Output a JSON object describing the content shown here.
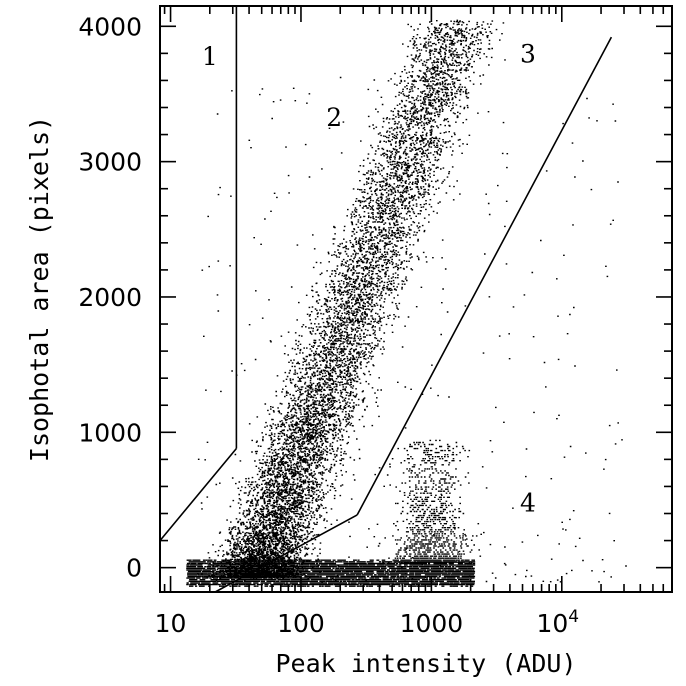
{
  "chart_data": {
    "type": "scatter",
    "xlabel": "Peak intensity (ADU)",
    "ylabel": "Isophotal area (pixels)",
    "x_scale": "log",
    "xlim": [
      8.3,
      70000
    ],
    "ylim": [
      -180,
      4150
    ],
    "x_ticks": [
      {
        "value": 10,
        "label": "10"
      },
      {
        "value": 100,
        "label": "100"
      },
      {
        "value": 1000,
        "label": "1000"
      },
      {
        "value": 10000,
        "label": "10^4"
      }
    ],
    "y_ticks": [
      {
        "value": 0,
        "label": "0"
      },
      {
        "value": 1000,
        "label": "1000"
      },
      {
        "value": 2000,
        "label": "2000"
      },
      {
        "value": 3000,
        "label": "3000"
      },
      {
        "value": 4000,
        "label": "4000"
      }
    ],
    "boundaries": [
      {
        "name": "vertical",
        "points": [
          [
            32,
            4150
          ],
          [
            32,
            880
          ]
        ]
      },
      {
        "name": "left-diagonal",
        "points": [
          [
            32,
            880
          ],
          [
            8.3,
            200
          ]
        ]
      },
      {
        "name": "lower-diagonal",
        "points": [
          [
            22,
            -180
          ],
          [
            270,
            390
          ]
        ]
      },
      {
        "name": "right-diagonal",
        "points": [
          [
            270,
            390
          ],
          [
            24000,
            3920
          ]
        ]
      }
    ],
    "regions": [
      {
        "label": "1",
        "x": 20,
        "y": 3780
      },
      {
        "label": "2",
        "x": 180,
        "y": 3330
      },
      {
        "label": "3",
        "x": 5500,
        "y": 3800
      },
      {
        "label": "4",
        "x": 5500,
        "y": 480
      }
    ],
    "point_bands": [
      {
        "name": "main-locus",
        "x_range": [
          13,
          3000
        ],
        "y_range": [
          -100,
          4150
        ],
        "density": "high",
        "trend": "area rises with log peak intensity"
      },
      {
        "name": "low-area-strip",
        "x_range": [
          13,
          2000
        ],
        "y_range": [
          -130,
          60
        ],
        "density": "very high"
      },
      {
        "name": "bright-compact",
        "x_range": [
          700,
          3000
        ],
        "y_range": [
          60,
          900
        ],
        "density": "medium"
      },
      {
        "name": "scattered",
        "x_range": [
          15,
          40000
        ],
        "y_range": [
          -100,
          3800
        ],
        "density": "sparse"
      }
    ]
  }
}
